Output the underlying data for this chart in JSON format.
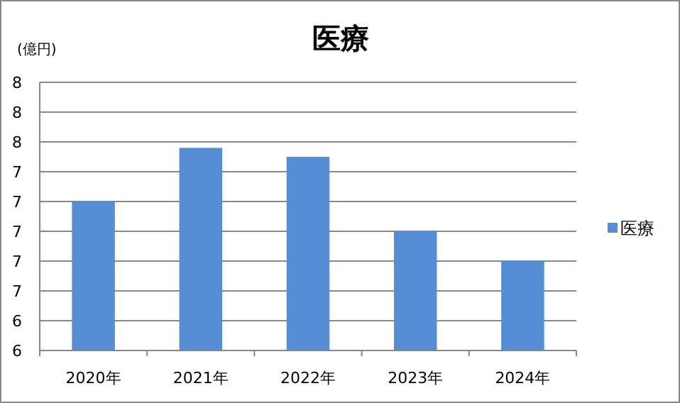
{
  "chart_data": {
    "type": "bar",
    "title": "医療",
    "ylabel": "(億円)",
    "categories": [
      "2020年",
      "2021年",
      "2022年",
      "2023年",
      "2024年"
    ],
    "series": [
      {
        "name": "医療",
        "color": "#558ed5",
        "values": [
          7.2,
          7.56,
          7.5,
          7.0,
          6.8
        ]
      }
    ],
    "ylim": [
      6.2,
      8.0
    ],
    "yticks": [
      {
        "value": 6.2,
        "label": "6"
      },
      {
        "value": 6.4,
        "label": "6"
      },
      {
        "value": 6.6,
        "label": "7"
      },
      {
        "value": 6.8,
        "label": "7"
      },
      {
        "value": 7.0,
        "label": "7"
      },
      {
        "value": 7.2,
        "label": "7"
      },
      {
        "value": 7.4,
        "label": "7"
      },
      {
        "value": 7.6,
        "label": "8"
      },
      {
        "value": 7.8,
        "label": "8"
      },
      {
        "value": 8.0,
        "label": "8"
      }
    ],
    "grid": "y",
    "legend": "right"
  }
}
